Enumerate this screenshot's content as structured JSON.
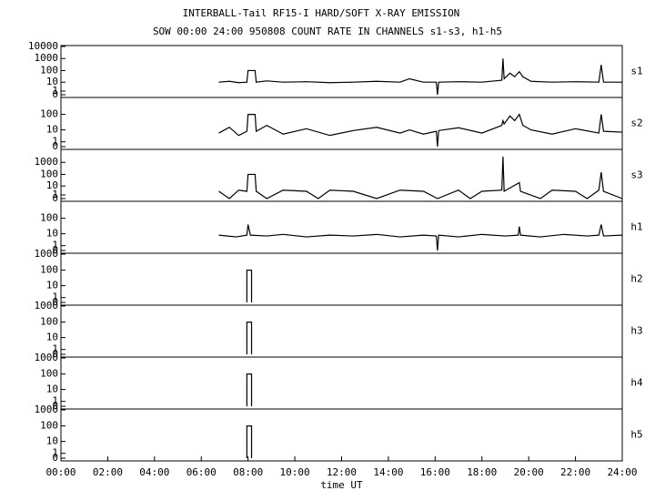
{
  "chart_data": [
    {
      "type": "line",
      "title": "INTERBALL-Tail RF15-I HARD/SOFT X-RAY EMISSION",
      "subtitle": "SOW 00:00 24:00 950808  COUNT RATE IN CHANNELS s1-s3, h1-h5",
      "label": "s1",
      "scale": "log1p",
      "color": "#000000",
      "xlim": [
        0,
        24
      ],
      "ylim": [
        0,
        10000
      ],
      "yticks": [
        10000,
        1000,
        100,
        10,
        1,
        0
      ],
      "x": [
        6.75,
        7.2,
        7.6,
        7.95,
        8.0,
        8.3,
        8.35,
        8.8,
        9.5,
        10.5,
        11.5,
        12.5,
        13.5,
        14.5,
        14.9,
        15.5,
        16.05,
        16.1,
        16.15,
        17,
        18,
        18.85,
        18.9,
        18.95,
        19.2,
        19.4,
        19.6,
        19.75,
        20.1,
        21,
        22,
        23,
        23.1,
        23.2,
        24
      ],
      "values": [
        10,
        12,
        9,
        10,
        100,
        100,
        10,
        13,
        10,
        11,
        9,
        10,
        12,
        10,
        20,
        10,
        10,
        0,
        10,
        11,
        10,
        15,
        1000,
        20,
        60,
        30,
        80,
        30,
        12,
        10,
        11,
        10,
        300,
        10,
        10
      ]
    },
    {
      "type": "line",
      "label": "s2",
      "scale": "log1p",
      "color": "#000000",
      "xlim": [
        0,
        24
      ],
      "ylim": [
        0,
        1000
      ],
      "yticks": [
        100,
        10,
        1,
        0
      ],
      "x": [
        6.75,
        7.2,
        7.6,
        7.95,
        8.0,
        8.3,
        8.35,
        8.8,
        9.5,
        10.5,
        11.5,
        12.5,
        13.5,
        14.5,
        14.9,
        15.5,
        16.05,
        16.1,
        16.15,
        17,
        18,
        18.85,
        18.9,
        18.95,
        19.2,
        19.4,
        19.6,
        19.75,
        20.1,
        21,
        22,
        23,
        23.1,
        23.2,
        24
      ],
      "values": [
        6,
        15,
        4,
        8,
        100,
        100,
        8,
        20,
        5,
        12,
        4,
        9,
        15,
        6,
        10,
        5,
        8,
        0,
        9,
        14,
        6,
        20,
        40,
        25,
        80,
        40,
        100,
        20,
        10,
        5,
        12,
        6,
        100,
        8,
        7
      ]
    },
    {
      "type": "line",
      "label": "s3",
      "scale": "log1p",
      "color": "#000000",
      "xlim": [
        0,
        24
      ],
      "ylim": [
        0,
        10000
      ],
      "yticks": [
        1000,
        100,
        10,
        1,
        0
      ],
      "x": [
        6.75,
        7.2,
        7.6,
        7.95,
        8.0,
        8.3,
        8.35,
        8.8,
        9.5,
        10.5,
        11.0,
        11.5,
        12.5,
        13.5,
        14.5,
        15.5,
        16.1,
        17,
        17.5,
        18,
        18.85,
        18.9,
        18.95,
        19.6,
        19.65,
        20.5,
        21,
        22,
        22.5,
        23,
        23.1,
        23.2,
        24
      ],
      "values": [
        3,
        0,
        4,
        3,
        100,
        100,
        3,
        0,
        4,
        3,
        0,
        4,
        3,
        0,
        4,
        3,
        0,
        4,
        0,
        3,
        4,
        3000,
        3,
        20,
        3,
        0,
        4,
        3,
        0,
        4,
        150,
        3,
        0
      ]
    },
    {
      "type": "line",
      "label": "h1",
      "scale": "log1p",
      "color": "#000000",
      "xlim": [
        0,
        24
      ],
      "ylim": [
        0,
        1000
      ],
      "yticks": [
        100,
        10,
        1,
        0
      ],
      "x": [
        6.75,
        7.5,
        7.95,
        8.0,
        8.1,
        8.8,
        9.5,
        10.5,
        11.5,
        12.5,
        13.5,
        14.5,
        15.5,
        16.05,
        16.1,
        16.15,
        17,
        18,
        19,
        19.55,
        19.6,
        19.65,
        20.5,
        21.5,
        22.5,
        23,
        23.1,
        23.2,
        24
      ],
      "values": [
        8,
        6,
        8,
        40,
        8,
        7,
        9,
        6,
        8,
        7,
        9,
        6,
        8,
        7,
        0,
        8,
        6,
        9,
        7,
        8,
        30,
        8,
        6,
        9,
        7,
        8,
        40,
        7,
        8
      ]
    },
    {
      "type": "line",
      "label": "h2",
      "scale": "log1p",
      "color": "#000000",
      "xlim": [
        0,
        24
      ],
      "ylim": [
        0,
        1000
      ],
      "yticks": [
        1000,
        100,
        10,
        1,
        0
      ],
      "x": [
        7.95,
        7.95,
        8.15,
        8.15
      ],
      "values": [
        0,
        100,
        100,
        0
      ]
    },
    {
      "type": "line",
      "label": "h3",
      "scale": "log1p",
      "color": "#000000",
      "xlim": [
        0,
        24
      ],
      "ylim": [
        0,
        1000
      ],
      "yticks": [
        1000,
        100,
        10,
        1,
        0
      ],
      "x": [
        7.95,
        7.95,
        8.15,
        8.15
      ],
      "values": [
        0,
        100,
        100,
        0
      ]
    },
    {
      "type": "line",
      "label": "h4",
      "scale": "log1p",
      "color": "#000000",
      "xlim": [
        0,
        24
      ],
      "ylim": [
        0,
        1000
      ],
      "yticks": [
        1000,
        100,
        10,
        1,
        0
      ],
      "x": [
        7.95,
        7.95,
        8.15,
        8.15
      ],
      "values": [
        0,
        100,
        100,
        0
      ]
    },
    {
      "type": "line",
      "label": "h5",
      "scale": "log1p",
      "color": "#000000",
      "xlim": [
        0,
        24
      ],
      "ylim": [
        0,
        1000
      ],
      "yticks": [
        1000,
        100,
        10,
        1,
        0
      ],
      "x": [
        7.95,
        7.95,
        8.15,
        8.15
      ],
      "values": [
        0,
        100,
        100,
        0
      ],
      "xlabel": "time UT",
      "xticks": [
        {
          "value": 0,
          "label": "00:00"
        },
        {
          "value": 2,
          "label": "02:00"
        },
        {
          "value": 4,
          "label": "04:00"
        },
        {
          "value": 6,
          "label": "06:00"
        },
        {
          "value": 8,
          "label": "08:00"
        },
        {
          "value": 10,
          "label": "10:00"
        },
        {
          "value": 12,
          "label": "12:00"
        },
        {
          "value": 14,
          "label": "14:00"
        },
        {
          "value": 16,
          "label": "16:00"
        },
        {
          "value": 18,
          "label": "18:00"
        },
        {
          "value": 20,
          "label": "20:00"
        },
        {
          "value": 22,
          "label": "22:00"
        },
        {
          "value": 24,
          "label": "24:00"
        }
      ]
    }
  ]
}
